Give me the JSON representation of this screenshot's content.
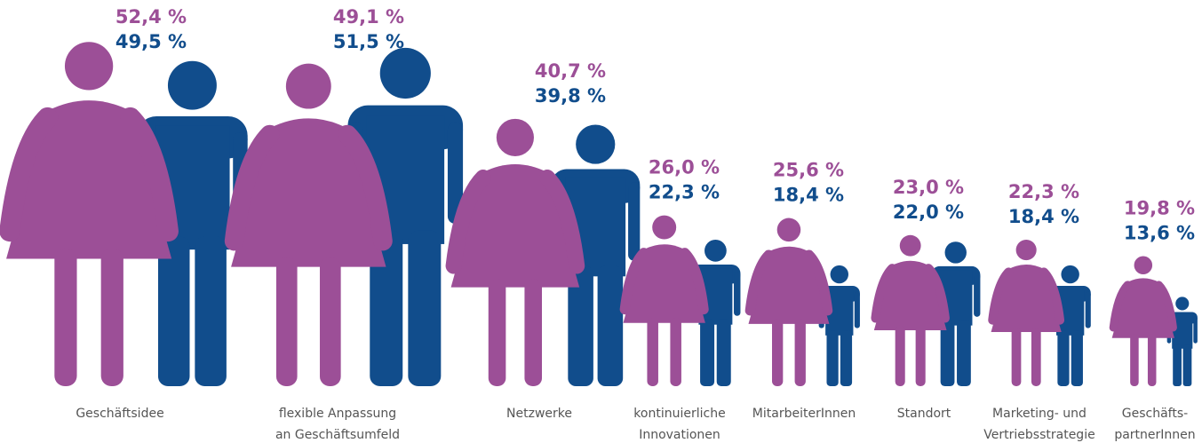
{
  "chart_data": {
    "type": "pictogram",
    "categories": [
      [
        "Geschäftsidee"
      ],
      [
        "flexible Anpassung",
        "an Geschäftsumfeld"
      ],
      [
        "Netzwerke"
      ],
      [
        "kontinuierliche",
        "Innovationen"
      ],
      [
        "MitarbeiterInnen"
      ],
      [
        "Standort"
      ],
      [
        "Marketing- und",
        "Vertriebsstrategie"
      ],
      [
        "Geschäfts-",
        "partnerInnen"
      ]
    ],
    "series": [
      {
        "color": "#9c4f97",
        "values": [
          52.4,
          49.1,
          40.7,
          26.0,
          25.6,
          23.0,
          22.3,
          19.8
        ],
        "value_labels": [
          "52,4 %",
          "49,1 %",
          "40,7 %",
          "26,0 %",
          "25,6 %",
          "23,0 %",
          "22,3 %",
          "19,8 %"
        ]
      },
      {
        "color": "#114d8c",
        "values": [
          49.5,
          51.5,
          39.8,
          22.3,
          18.4,
          22.0,
          18.4,
          13.6
        ],
        "value_labels": [
          "49,5 %",
          "51,5 %",
          "39,8 %",
          "22,3 %",
          "18,4 %",
          "22,0 %",
          "18,4 %",
          "13,6 %"
        ]
      }
    ]
  }
}
